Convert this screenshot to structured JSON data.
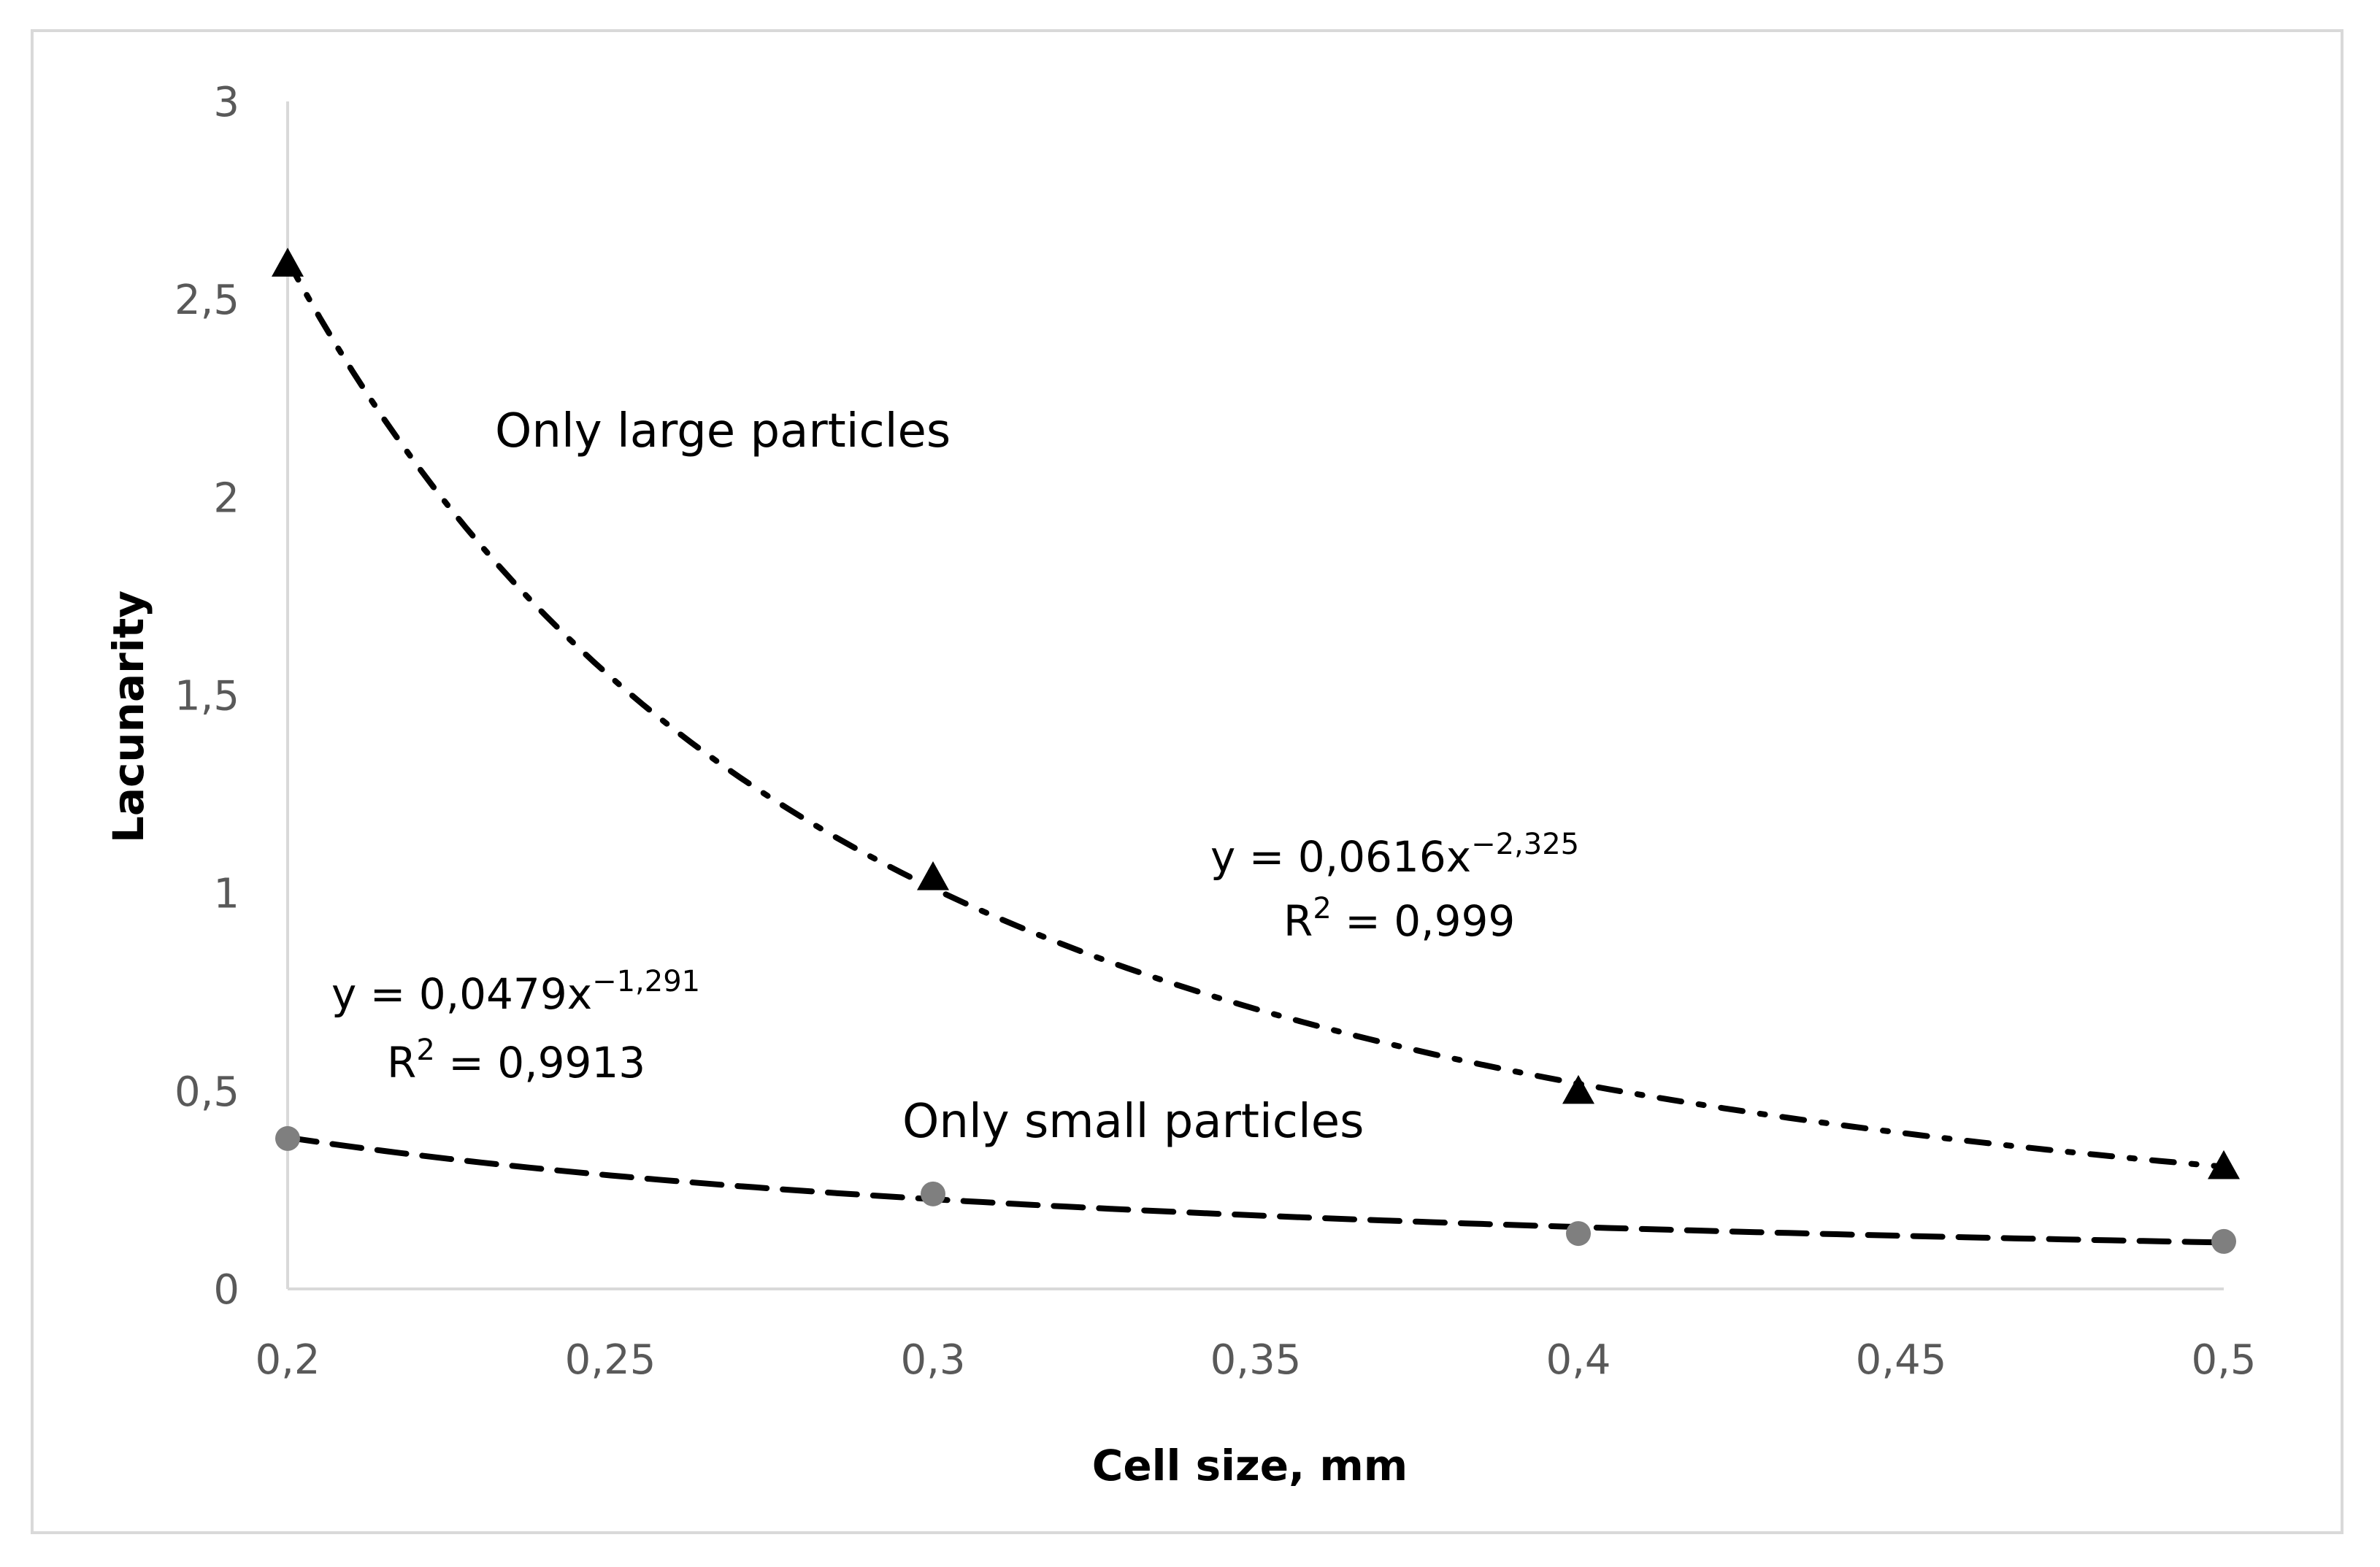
{
  "chart_data": {
    "type": "scatter",
    "xlabel": "Cell size, mm",
    "ylabel": "Lacunarity",
    "xlim": [
      0.2,
      0.5
    ],
    "ylim": [
      0,
      3
    ],
    "x_ticks": [
      "0,2",
      "0,25",
      "0,3",
      "0,35",
      "0,4",
      "0,45",
      "0,5"
    ],
    "y_ticks": [
      "0",
      "0,5",
      "1",
      "1,5",
      "2",
      "2,5",
      "3"
    ],
    "grid": false,
    "colors": {
      "large": "#000000",
      "small": "#7f7f7f",
      "axis": "#d9d9d9",
      "tick_text": "#595959"
    },
    "series": [
      {
        "name": "Only large particles",
        "marker": "triangle",
        "x": [
          0.2,
          0.3,
          0.4,
          0.5
        ],
        "y": [
          2.59,
          1.04,
          0.5,
          0.31
        ],
        "trendline": {
          "type": "power",
          "a": 0.0616,
          "b": -2.325,
          "style": "dash-dot"
        },
        "equation": {
          "base": "y = 0,0616x",
          "exponent": "−2,325",
          "r2_prefix": "R",
          "r2_sup": "2",
          "r2_value": " = 0,999"
        },
        "label": "Only large particles"
      },
      {
        "name": "Only small particles",
        "marker": "circle",
        "x": [
          0.2,
          0.3,
          0.4,
          0.5
        ],
        "y": [
          0.38,
          0.24,
          0.14,
          0.12
        ],
        "trendline": {
          "type": "power",
          "a": 0.0479,
          "b": -1.291,
          "style": "dashed"
        },
        "equation": {
          "base": "y = 0,0479x",
          "exponent": "−1,291",
          "r2_prefix": "R",
          "r2_sup": "2",
          "r2_value": " = 0,9913"
        },
        "label": "Only small particles"
      }
    ]
  }
}
